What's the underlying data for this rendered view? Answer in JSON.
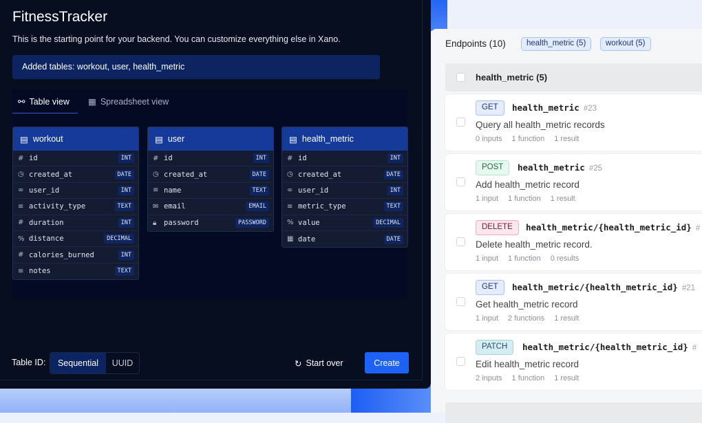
{
  "app": {
    "title": "FitnessTracker",
    "description": "This is the starting point for your backend. You can customize everything else in Xano.",
    "banner": "Added tables: workout, user, health_metric",
    "tabs": [
      {
        "label": "Table view",
        "icon": "schema-icon",
        "active": true
      },
      {
        "label": "Spreadsheet view",
        "icon": "grid-icon",
        "active": false
      }
    ],
    "tables": [
      {
        "name": "workout",
        "fields": [
          {
            "icon": "#",
            "name": "id",
            "type": "INT"
          },
          {
            "icon": "clock",
            "name": "created_at",
            "type": "DATE"
          },
          {
            "icon": "link",
            "name": "user_id",
            "type": "INT"
          },
          {
            "icon": "text",
            "name": "activity_type",
            "type": "TEXT"
          },
          {
            "icon": "#",
            "name": "duration",
            "type": "INT"
          },
          {
            "icon": "%",
            "name": "distance",
            "type": "DECIMAL"
          },
          {
            "icon": "#",
            "name": "calories_burned",
            "type": "INT"
          },
          {
            "icon": "text",
            "name": "notes",
            "type": "TEXT"
          }
        ]
      },
      {
        "name": "user",
        "fields": [
          {
            "icon": "#",
            "name": "id",
            "type": "INT"
          },
          {
            "icon": "clock",
            "name": "created_at",
            "type": "DATE"
          },
          {
            "icon": "text",
            "name": "name",
            "type": "TEXT"
          },
          {
            "icon": "mail",
            "name": "email",
            "type": "EMAIL"
          },
          {
            "icon": "lock",
            "name": "password",
            "type": "PASSWORD"
          }
        ]
      },
      {
        "name": "health_metric",
        "fields": [
          {
            "icon": "#",
            "name": "id",
            "type": "INT"
          },
          {
            "icon": "clock",
            "name": "created_at",
            "type": "DATE"
          },
          {
            "icon": "link",
            "name": "user_id",
            "type": "INT"
          },
          {
            "icon": "text",
            "name": "metric_type",
            "type": "TEXT"
          },
          {
            "icon": "%",
            "name": "value",
            "type": "DECIMAL"
          },
          {
            "icon": "calendar",
            "name": "date",
            "type": "DATE"
          }
        ]
      }
    ],
    "footer": {
      "table_id_label": "Table ID:",
      "options": [
        "Sequential",
        "UUID"
      ],
      "selected": "Sequential",
      "start_over": "Start over",
      "create": "Create"
    }
  },
  "endpoints": {
    "title": "Endpoints (10)",
    "filters": [
      "health_metric (5)",
      "workout (5)"
    ],
    "group": "health_metric (5)",
    "items": [
      {
        "method": "GET",
        "path": "health_metric",
        "id": "#23",
        "summary": "Query all health_metric records",
        "meta": [
          "0 inputs",
          "1 function",
          "1 result"
        ]
      },
      {
        "method": "POST",
        "path": "health_metric",
        "id": "#25",
        "summary": "Add health_metric record",
        "meta": [
          "1 input",
          "1 function",
          "1 result"
        ]
      },
      {
        "method": "DELETE",
        "path": "health_metric/{health_metric_id}",
        "id": "#",
        "summary": "Delete health_metric record.",
        "meta": [
          "1 input",
          "1 function",
          "0 results"
        ]
      },
      {
        "method": "GET",
        "path": "health_metric/{health_metric_id}",
        "id": "#21",
        "summary": "Get health_metric record",
        "meta": [
          "1 input",
          "2 functions",
          "1 result"
        ]
      },
      {
        "method": "PATCH",
        "path": "health_metric/{health_metric_id}",
        "id": "#",
        "summary": "Edit health_metric record",
        "meta": [
          "2 inputs",
          "1 function",
          "1 result"
        ]
      }
    ]
  },
  "colors": {
    "accent": "#1d62f5",
    "panel": "#070e20",
    "table_header": "#163a9a"
  }
}
